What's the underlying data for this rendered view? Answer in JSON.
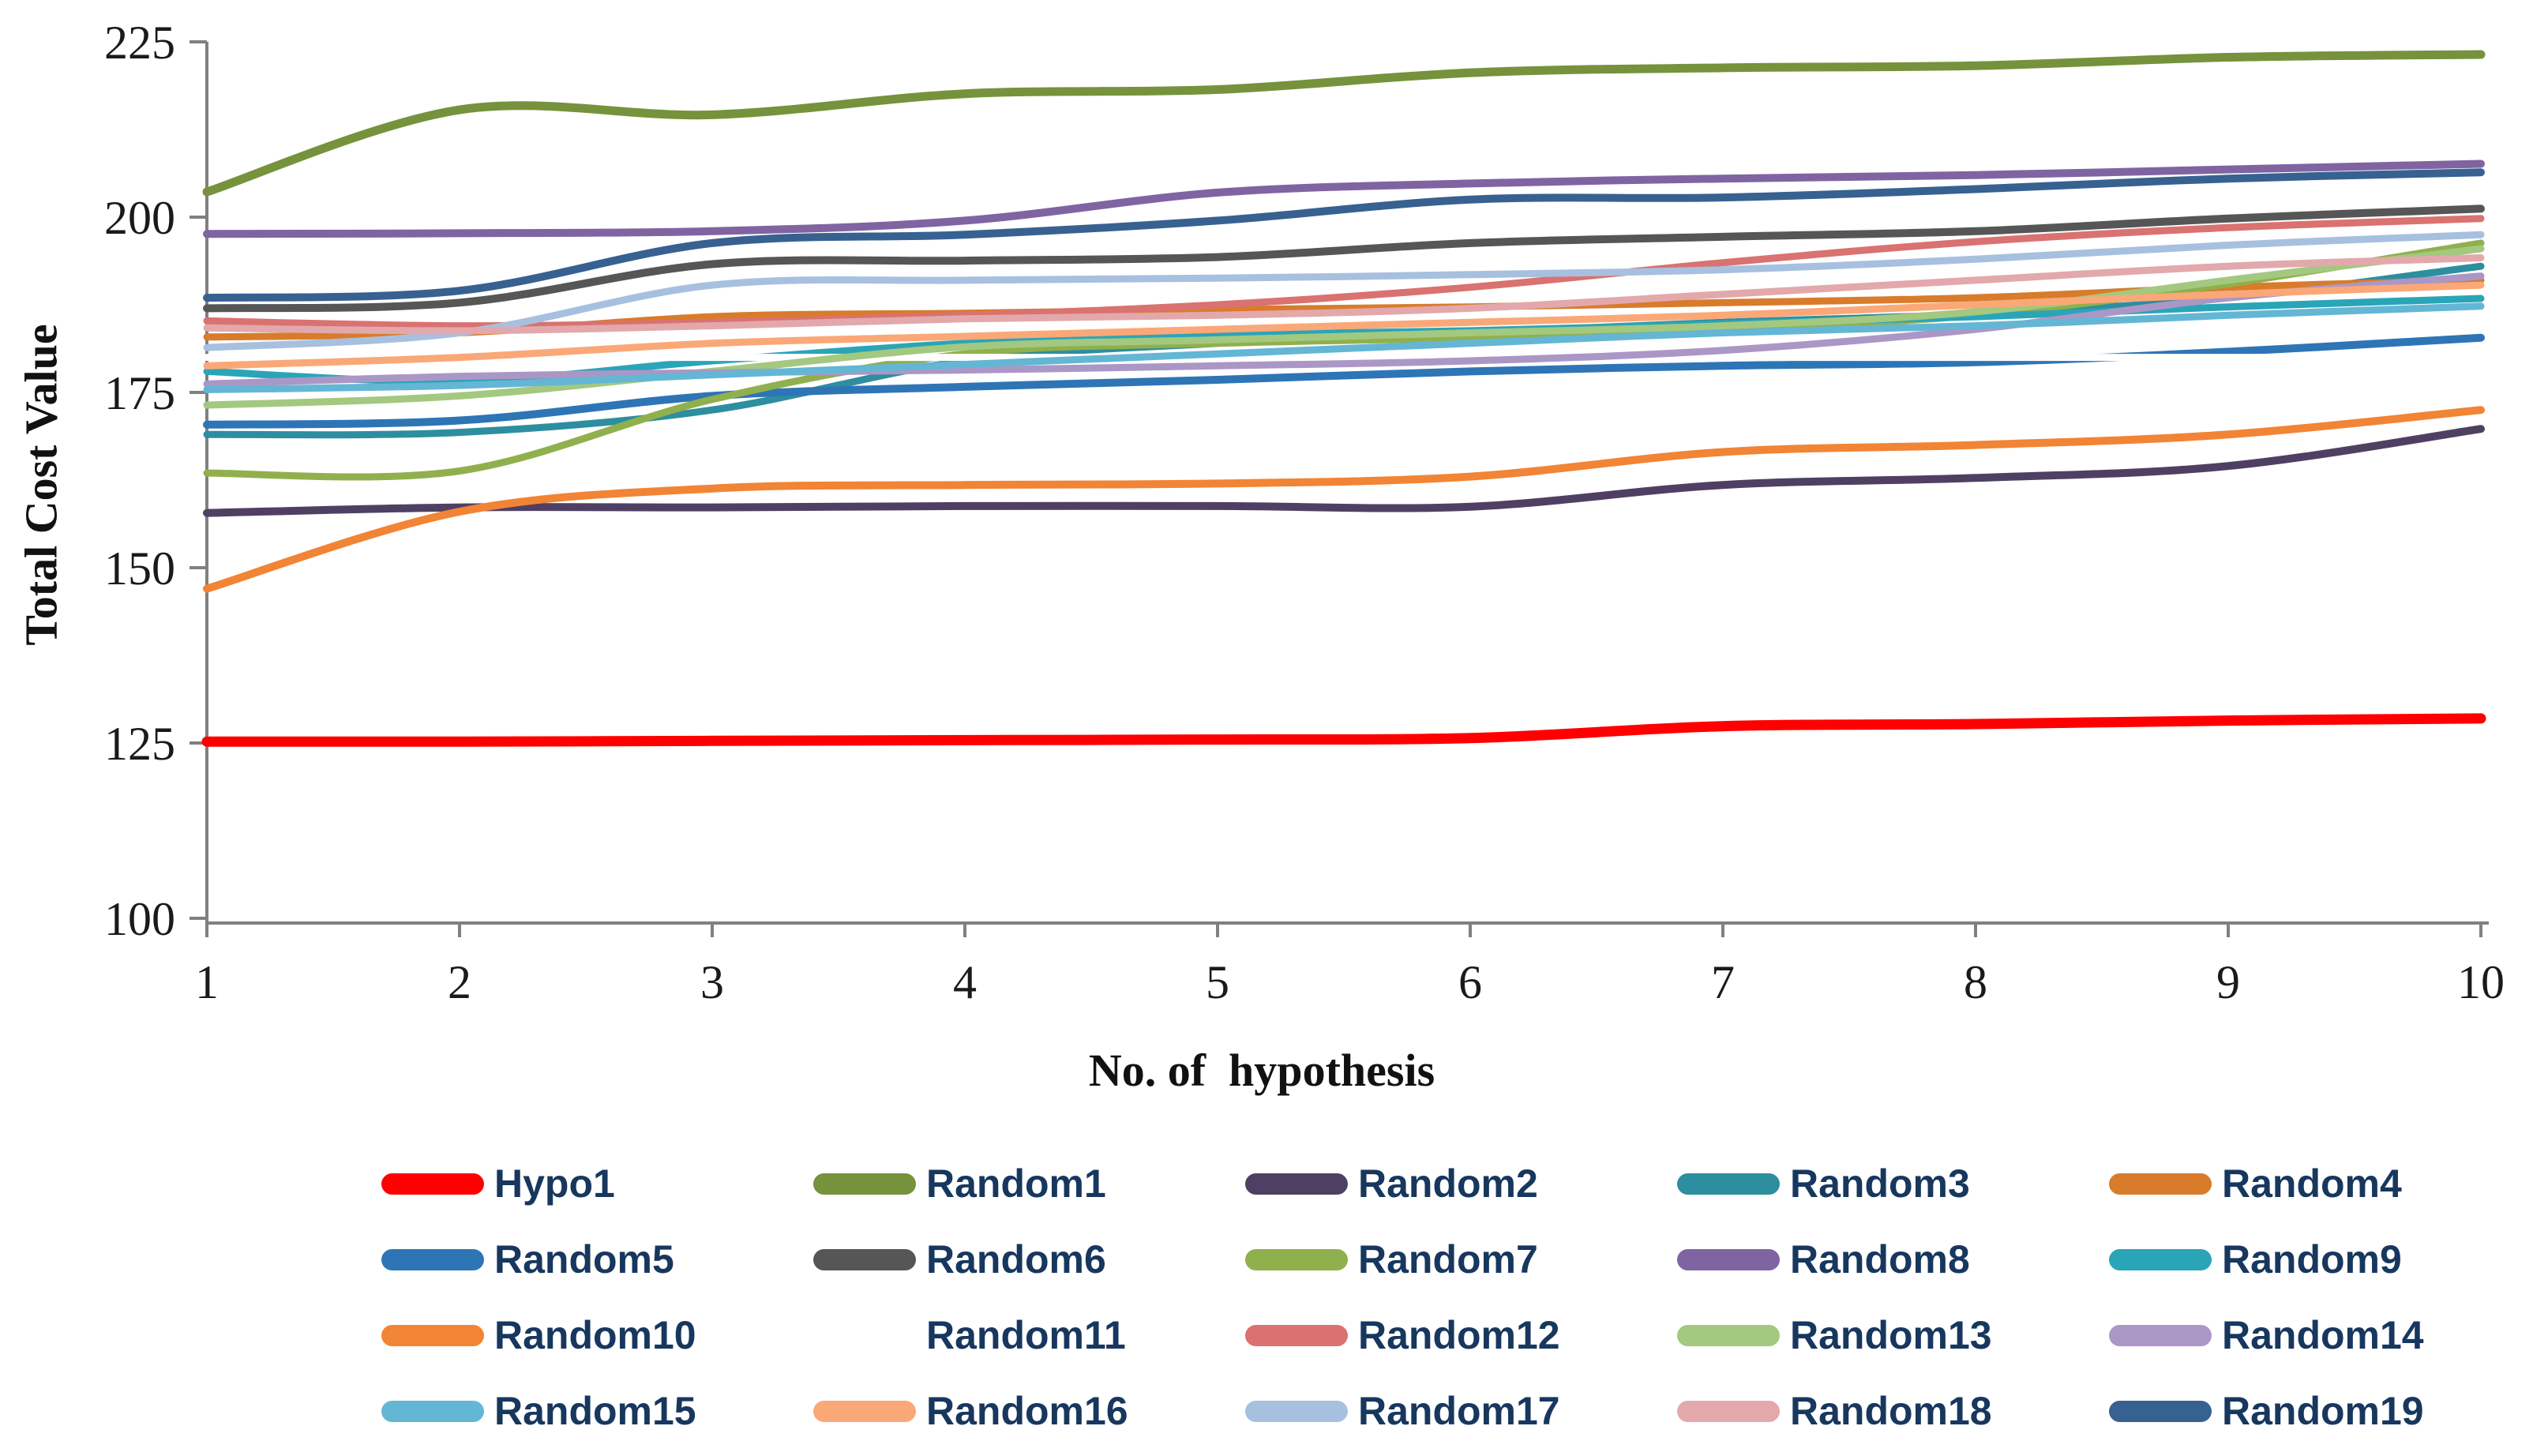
{
  "chart_data": {
    "type": "line",
    "title": "",
    "xlabel": "No. of  hypothesis",
    "ylabel": "Total Cost Value",
    "x": [
      1,
      2,
      3,
      4,
      5,
      6,
      7,
      8,
      9,
      10
    ],
    "xlim": [
      1,
      10
    ],
    "ylim": [
      100,
      225
    ],
    "xticks": [
      "1",
      "2",
      "3",
      "4",
      "5",
      "6",
      "7",
      "8",
      "9",
      "10"
    ],
    "yticks": [
      "100",
      "125",
      "150",
      "175",
      "200",
      "225"
    ],
    "ytick_values": [
      100,
      125,
      150,
      175,
      200,
      225
    ],
    "grid": false,
    "legend_position": "bottom",
    "legend_columns": 5,
    "axis_color": "#808080",
    "tick_label_color": "#1a1a1a",
    "legend_text_color": "#17375E",
    "series": [
      {
        "name": "Hypo1",
        "color": "#FE0000",
        "width": 13,
        "values": [
          125.2,
          125.2,
          125.3,
          125.4,
          125.5,
          125.7,
          127.4,
          127.7,
          128.2,
          128.5
        ]
      },
      {
        "name": "Random1",
        "color": "#76923C",
        "width": 11,
        "values": [
          203.6,
          215.3,
          214.6,
          217.6,
          218.2,
          220.6,
          221.3,
          221.6,
          222.8,
          223.2
        ]
      },
      {
        "name": "Random2",
        "color": "#4F4063",
        "width": 10,
        "values": [
          157.8,
          158.6,
          158.6,
          158.8,
          158.8,
          158.7,
          161.8,
          162.8,
          164.5,
          169.8
        ]
      },
      {
        "name": "Random3",
        "color": "#2D8E9F",
        "width": 9,
        "values": [
          169.0,
          169.3,
          172.5,
          179.5,
          182.0,
          183.5,
          185.0,
          186.2,
          188.5,
          193.0
        ]
      },
      {
        "name": "Random4",
        "color": "#D87C2B",
        "width": 9,
        "values": [
          182.9,
          183.5,
          185.8,
          186.3,
          186.8,
          187.2,
          187.8,
          188.5,
          190.0,
          191.0
        ]
      },
      {
        "name": "Random5",
        "color": "#2E75B6",
        "width": 10,
        "values": [
          170.4,
          171.0,
          174.5,
          175.8,
          176.8,
          178.0,
          178.8,
          179.3,
          180.8,
          182.8
        ]
      },
      {
        "name": "Random6",
        "color": "#565656",
        "width": 10,
        "values": [
          187.0,
          187.8,
          193.3,
          193.8,
          194.3,
          196.3,
          197.2,
          198.0,
          199.8,
          201.2
        ]
      },
      {
        "name": "Random7",
        "color": "#90B04D",
        "width": 9,
        "values": [
          163.5,
          163.8,
          174.0,
          180.5,
          182.0,
          182.8,
          184.0,
          186.0,
          190.5,
          196.3
        ]
      },
      {
        "name": "Random8",
        "color": "#8064A2",
        "width": 10,
        "values": [
          197.6,
          197.7,
          198.0,
          199.5,
          203.5,
          204.8,
          205.5,
          206.0,
          206.8,
          207.6
        ]
      },
      {
        "name": "Random9",
        "color": "#2AA5B8",
        "width": 9,
        "values": [
          178.0,
          176.6,
          179.5,
          182.0,
          183.2,
          183.8,
          184.8,
          185.8,
          187.2,
          188.4
        ]
      },
      {
        "name": "Random10",
        "color": "#F28435",
        "width": 10,
        "values": [
          147.0,
          158.0,
          161.3,
          161.8,
          162.0,
          163.0,
          166.5,
          167.5,
          169.0,
          172.5
        ]
      },
      {
        "name": "Random11",
        "color": "#FFFFFF",
        "width": 9,
        "values": [
          180.0,
          180.0,
          180.0,
          180.0,
          180.0,
          180.0,
          180.0,
          180.0,
          180.0,
          180.0
        ]
      },
      {
        "name": "Random12",
        "color": "#D97270",
        "width": 9,
        "values": [
          185.2,
          184.5,
          185.0,
          186.0,
          187.5,
          190.0,
          193.5,
          196.5,
          198.5,
          199.8
        ]
      },
      {
        "name": "Random13",
        "color": "#A3C87F",
        "width": 9,
        "values": [
          173.2,
          174.5,
          178.0,
          181.5,
          182.5,
          183.5,
          184.5,
          186.5,
          191.0,
          195.5
        ]
      },
      {
        "name": "Random14",
        "color": "#AB97C6",
        "width": 9,
        "values": [
          176.2,
          177.3,
          177.8,
          178.2,
          178.8,
          179.5,
          181.0,
          184.0,
          188.5,
          191.6
        ]
      },
      {
        "name": "Random15",
        "color": "#64B6D5",
        "width": 9,
        "values": [
          175.4,
          176.0,
          177.5,
          179.0,
          180.5,
          182.0,
          183.5,
          184.5,
          186.0,
          187.3
        ]
      },
      {
        "name": "Random16",
        "color": "#FAA878",
        "width": 9,
        "values": [
          178.8,
          180.0,
          182.0,
          183.0,
          184.0,
          185.0,
          186.0,
          187.5,
          189.0,
          190.3
        ]
      },
      {
        "name": "Random17",
        "color": "#A8C0DF",
        "width": 9,
        "values": [
          181.4,
          183.5,
          190.3,
          191.0,
          191.3,
          191.8,
          192.5,
          194.0,
          196.0,
          197.5
        ]
      },
      {
        "name": "Random18",
        "color": "#E3A8AB",
        "width": 9,
        "values": [
          184.2,
          183.8,
          184.5,
          185.5,
          186.0,
          187.0,
          189.0,
          191.0,
          193.0,
          194.2
        ]
      },
      {
        "name": "Random19",
        "color": "#376191",
        "width": 10,
        "values": [
          188.5,
          189.5,
          196.3,
          197.5,
          199.5,
          202.5,
          202.8,
          204.0,
          205.5,
          206.4
        ]
      }
    ]
  }
}
